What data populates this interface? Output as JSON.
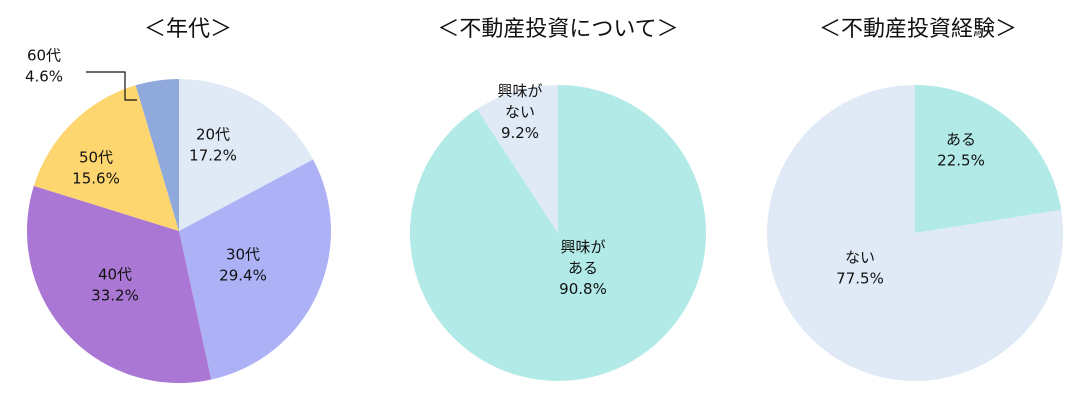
{
  "colors": {
    "bg": "#ffffff",
    "slice_light_blue": "#dfeaf6",
    "slice_lavender": "#adb2f6",
    "slice_purple": "#aa78d4",
    "slice_yellow": "#fed66f",
    "slice_blue_gray": "#8fa9dc",
    "slice_mint": "#b2eae7",
    "leader_line": "#111111"
  },
  "chart_data": [
    {
      "type": "pie",
      "title": "＜年代＞",
      "slices": [
        {
          "label": "20代",
          "value": 17.2,
          "display": "17.2%",
          "color": "#dfeaf6"
        },
        {
          "label": "30代",
          "value": 29.4,
          "display": "29.4%",
          "color": "#adb2f6"
        },
        {
          "label": "40代",
          "value": 33.2,
          "display": "33.2%",
          "color": "#aa78d4"
        },
        {
          "label": "50代",
          "value": 15.6,
          "display": "15.6%",
          "color": "#fed66f"
        },
        {
          "label": "60代",
          "value": 4.6,
          "display": "4.6%",
          "color": "#8fa9dc"
        }
      ]
    },
    {
      "type": "pie",
      "title": "＜不動産投資について＞",
      "slices": [
        {
          "label": "興味がある",
          "value": 90.8,
          "display": "90.8%",
          "color": "#b2eae7"
        },
        {
          "label": "興味がない",
          "value": 9.2,
          "display": "9.2%",
          "color": "#dfeaf6"
        }
      ]
    },
    {
      "type": "pie",
      "title": "＜不動産投資経験＞",
      "slices": [
        {
          "label": "ある",
          "value": 22.5,
          "display": "22.5%",
          "color": "#b2eae7"
        },
        {
          "label": "ない",
          "value": 77.5,
          "display": "77.5%",
          "color": "#dfeaf6"
        }
      ]
    }
  ]
}
